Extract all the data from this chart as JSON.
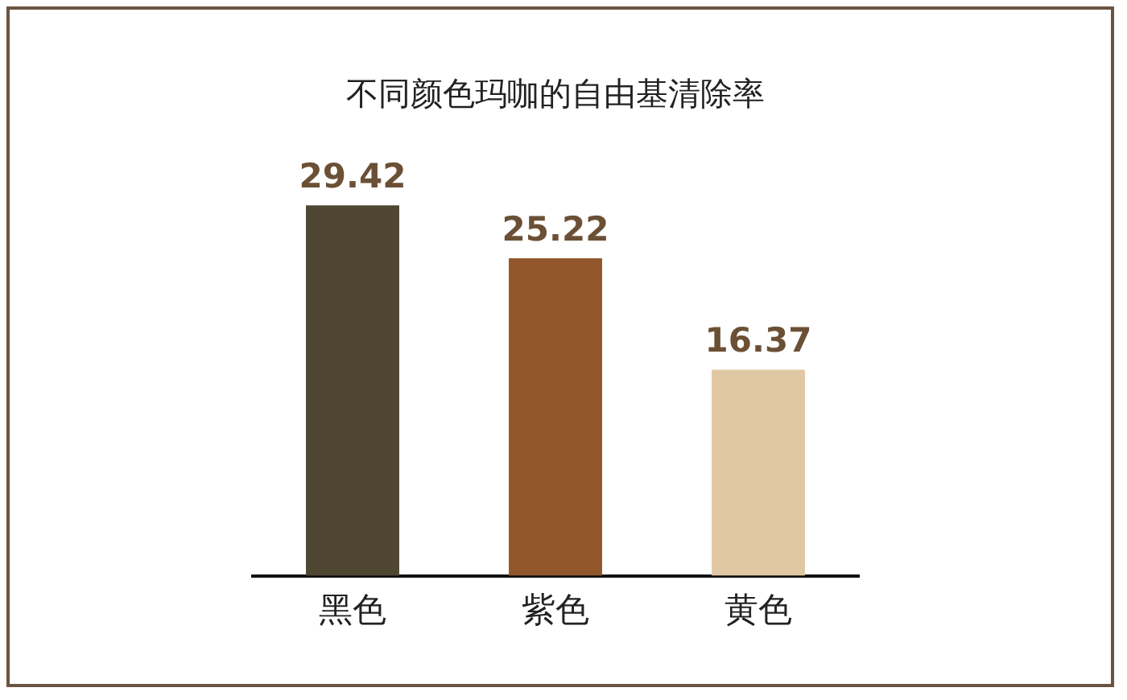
{
  "chart_data": {
    "type": "bar",
    "title": "不同颜色玛咖的自由基清除率",
    "categories": [
      "黑色",
      "紫色",
      "黄色"
    ],
    "values": [
      29.42,
      25.22,
      16.37
    ],
    "colors": [
      "#4f4632",
      "#91572b",
      "#e0c8a4"
    ],
    "data_labels": true
  }
}
